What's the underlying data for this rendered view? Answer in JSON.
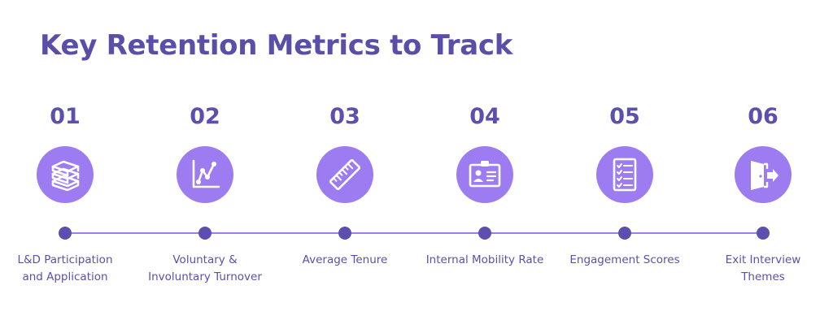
{
  "title": "Key Retention Metrics to Track",
  "colors": {
    "title": "#5a4ea8",
    "accent": "#5b4fb0",
    "circle": "#9d7cf2",
    "line": "#9d7cf2"
  },
  "steps": [
    {
      "number": "01",
      "icon": "stacked-books-icon",
      "label_lines": [
        "L&D Participation",
        "and Application"
      ]
    },
    {
      "number": "02",
      "icon": "line-chart-icon",
      "label_lines": [
        "Voluntary &",
        "Involuntary Turnover"
      ]
    },
    {
      "number": "03",
      "icon": "ruler-icon",
      "label_lines": [
        "Average Tenure"
      ]
    },
    {
      "number": "04",
      "icon": "id-badge-icon",
      "label_lines": [
        "Internal Mobility Rate"
      ]
    },
    {
      "number": "05",
      "icon": "checklist-icon",
      "label_lines": [
        "Engagement Scores"
      ]
    },
    {
      "number": "06",
      "icon": "exit-door-icon",
      "label_lines": [
        "Exit Interview",
        "Themes"
      ]
    }
  ]
}
